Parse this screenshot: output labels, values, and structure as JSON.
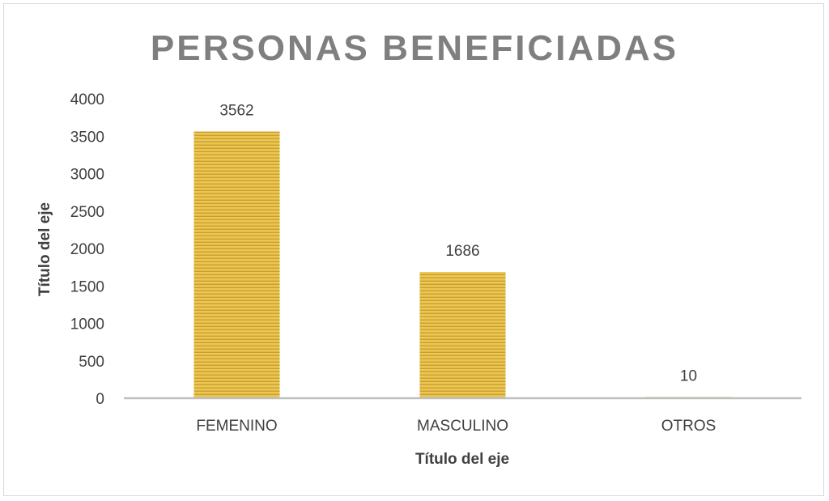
{
  "chart_data": {
    "type": "bar",
    "title": "PERSONAS BENEFICIADAS",
    "xlabel": "Título del eje",
    "ylabel": "Título del eje",
    "categories": [
      "FEMENINO",
      "MASCULINO",
      "OTROS"
    ],
    "values": [
      3562,
      1686,
      10
    ],
    "data_labels": [
      "3562",
      "1686",
      "10"
    ],
    "yticks": [
      0,
      500,
      1000,
      1500,
      2000,
      2500,
      3000,
      3500,
      4000
    ],
    "ylim": [
      0,
      4000
    ],
    "grid": false,
    "legend": "none",
    "colors": {
      "bar_fill": "#e8c04a",
      "bar_stripe": "#c99a1a",
      "axis": "#bfbfbf",
      "title": "#7f7f7f",
      "text": "#404040"
    }
  }
}
